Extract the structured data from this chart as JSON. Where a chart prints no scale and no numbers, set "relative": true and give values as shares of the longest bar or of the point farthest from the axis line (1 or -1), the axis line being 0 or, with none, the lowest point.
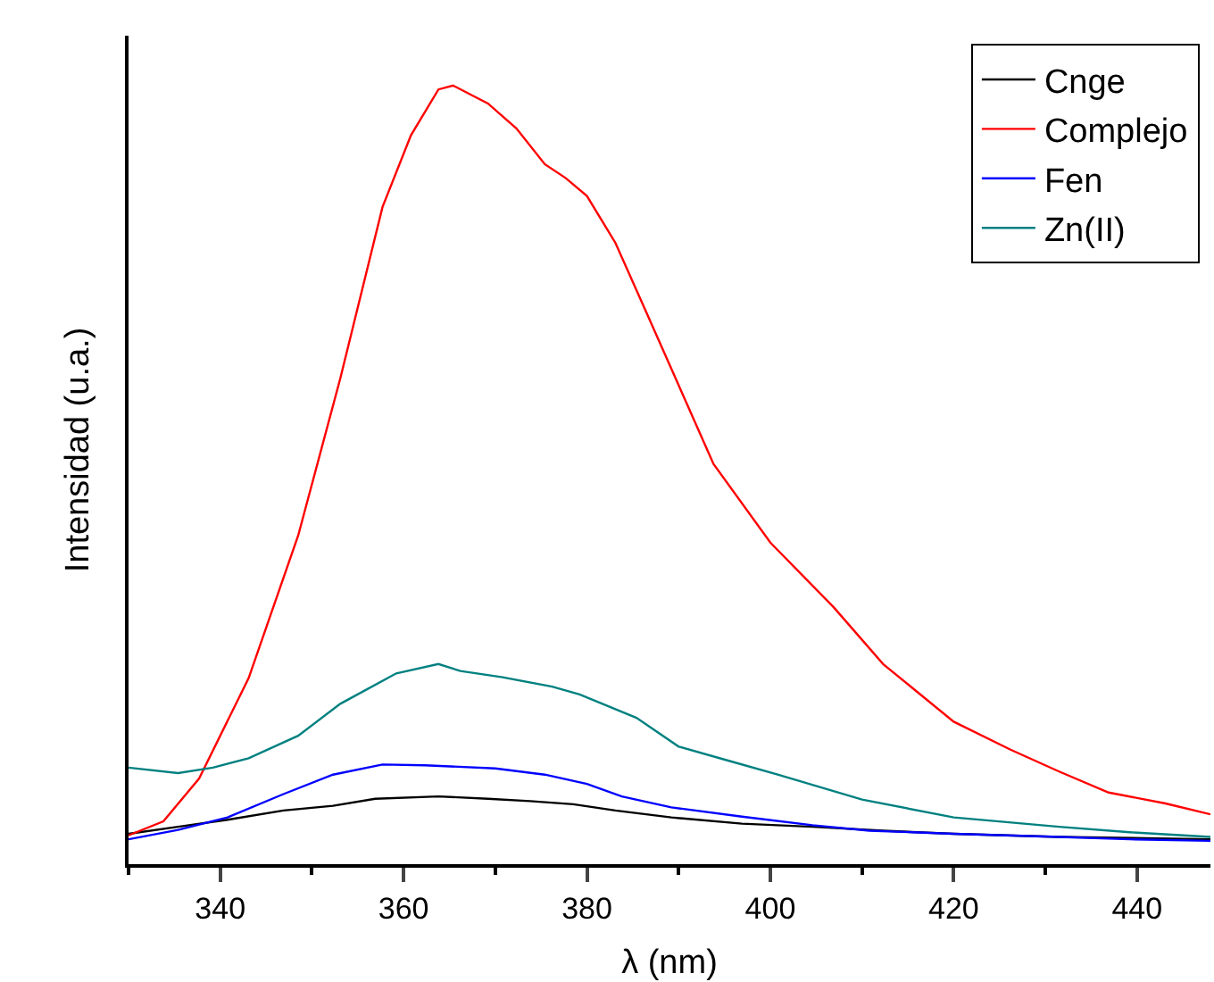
{
  "chart_data": {
    "type": "line",
    "xlabel": "λ (nm)",
    "ylabel": "Intensidad (u.a.)",
    "relative": true,
    "xlim": [
      330,
      448
    ],
    "xticks": [
      340,
      360,
      380,
      400,
      420,
      440
    ],
    "legend": "top right",
    "marker": "none",
    "line_style": "solid",
    "series": [
      {
        "name": "Cnge",
        "color": "#000000",
        "x": [
          330,
          335.4,
          340.8,
          346.9,
          352.3,
          356.9,
          363.8,
          369.2,
          373.8,
          378.5,
          383.1,
          389.2,
          396.9,
          404.6,
          412.3,
          420,
          431.5,
          448
        ],
        "values": [
          0.039,
          0.048,
          0.057,
          0.069,
          0.075,
          0.084,
          0.087,
          0.084,
          0.081,
          0.077,
          0.069,
          0.06,
          0.052,
          0.048,
          0.043,
          0.039,
          0.035,
          0.032
        ]
      },
      {
        "name": "Complejo",
        "color": "#ff0000",
        "x": [
          330,
          333.8,
          337.7,
          343.1,
          348.5,
          353.1,
          357.7,
          360.8,
          363.8,
          365.4,
          369.2,
          372.3,
          375.4,
          377.7,
          380,
          383.1,
          386.2,
          390,
          393.8,
          400,
          406.9,
          412.3,
          420,
          426.2,
          431.5,
          436.9,
          443.1,
          448
        ],
        "values": [
          0.037,
          0.055,
          0.11,
          0.239,
          0.422,
          0.624,
          0.844,
          0.936,
          0.995,
          1.0,
          0.977,
          0.945,
          0.899,
          0.881,
          0.858,
          0.798,
          0.716,
          0.615,
          0.514,
          0.413,
          0.33,
          0.257,
          0.183,
          0.147,
          0.119,
          0.092,
          0.078,
          0.064
        ]
      },
      {
        "name": "Fen",
        "color": "#0000ff",
        "x": [
          330,
          335.4,
          340.8,
          346.9,
          352.3,
          357.7,
          362.3,
          370,
          375.4,
          380,
          383.8,
          389.2,
          396.9,
          404.6,
          410.8,
          420,
          431.5,
          439.2,
          448
        ],
        "values": [
          0.032,
          0.044,
          0.06,
          0.09,
          0.115,
          0.128,
          0.127,
          0.123,
          0.115,
          0.103,
          0.087,
          0.073,
          0.061,
          0.05,
          0.043,
          0.039,
          0.035,
          0.032,
          0.03
        ]
      },
      {
        "name": "Zn(II)",
        "color": "#008080",
        "x": [
          330,
          335.4,
          339.2,
          343.1,
          348.5,
          353.1,
          359.2,
          363.8,
          366.2,
          370.8,
          376.2,
          379.2,
          385.4,
          390,
          395.4,
          400.8,
          410,
          420,
          431.5,
          439.2,
          448
        ],
        "values": [
          0.124,
          0.117,
          0.124,
          0.136,
          0.165,
          0.206,
          0.245,
          0.257,
          0.248,
          0.24,
          0.228,
          0.218,
          0.188,
          0.151,
          0.133,
          0.115,
          0.083,
          0.06,
          0.048,
          0.041,
          0.035
        ]
      }
    ]
  }
}
